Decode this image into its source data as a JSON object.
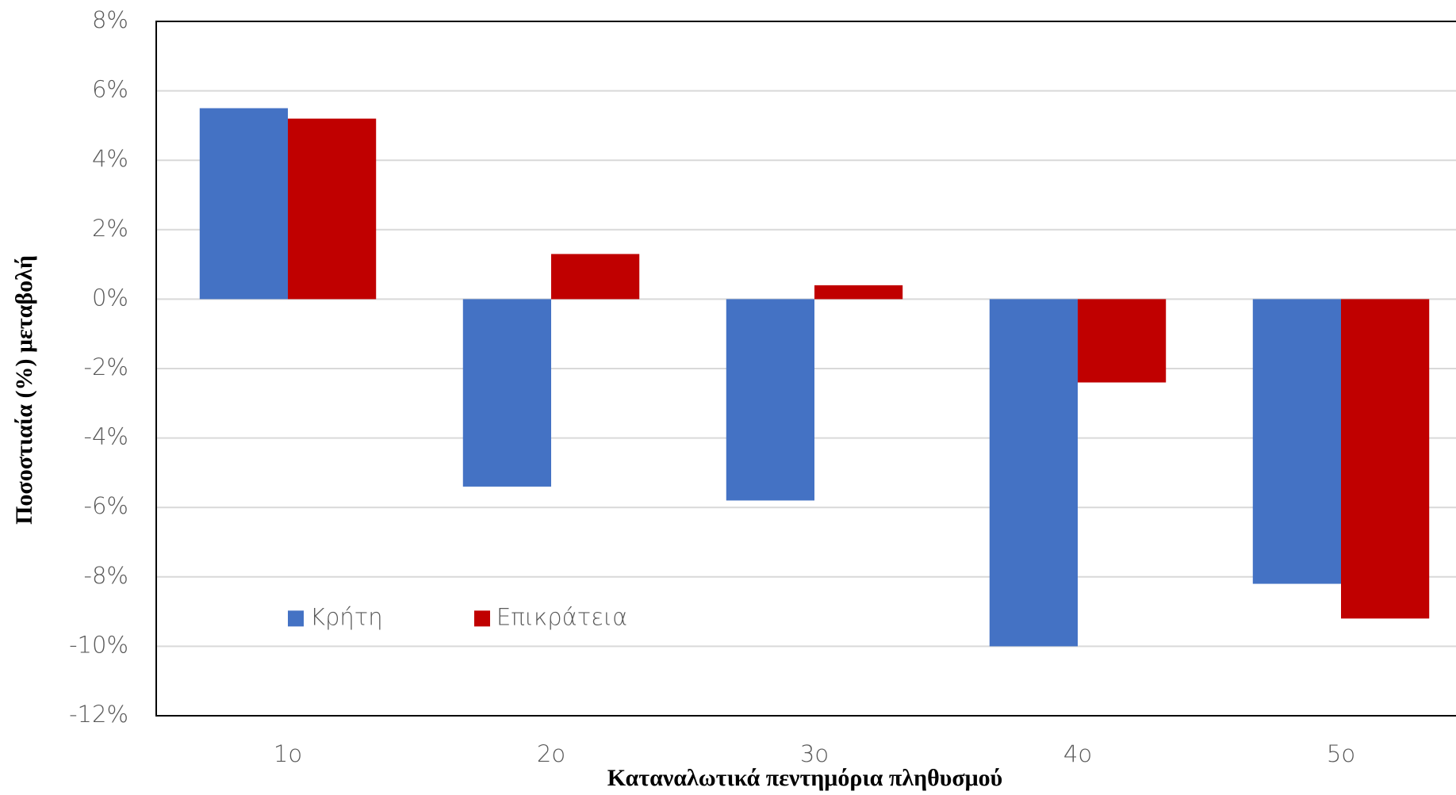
{
  "chart_data": {
    "type": "bar",
    "x_label": "Καταναλωτικά πεντημόρια πληθυσμού",
    "y_label": "Ποσοστιαία (%) μεταβολή",
    "categories": [
      "1ο",
      "2ο",
      "3ο",
      "4ο",
      "5ο"
    ],
    "series": [
      {
        "name": "Κρήτη",
        "color": "#4472c4",
        "values": [
          5.5,
          -5.4,
          -5.8,
          -10.0,
          -8.2
        ]
      },
      {
        "name": "Επικράτεια",
        "color": "#c00000",
        "values": [
          5.2,
          1.3,
          0.4,
          -2.4,
          -9.2
        ]
      }
    ],
    "ylim": [
      -12,
      8
    ],
    "yticks": [
      {
        "value": -12,
        "label": "-12%"
      },
      {
        "value": -10,
        "label": "-10%"
      },
      {
        "value": -8,
        "label": "-8%"
      },
      {
        "value": -6,
        "label": "-6%"
      },
      {
        "value": -4,
        "label": "-4%"
      },
      {
        "value": -2,
        "label": "-2%"
      },
      {
        "value": 0,
        "label": "0%"
      },
      {
        "value": 2,
        "label": "2%"
      },
      {
        "value": 4,
        "label": "4%"
      },
      {
        "value": 6,
        "label": "6%"
      },
      {
        "value": 8,
        "label": "8%"
      }
    ],
    "grid": true,
    "legend": "lower left"
  }
}
